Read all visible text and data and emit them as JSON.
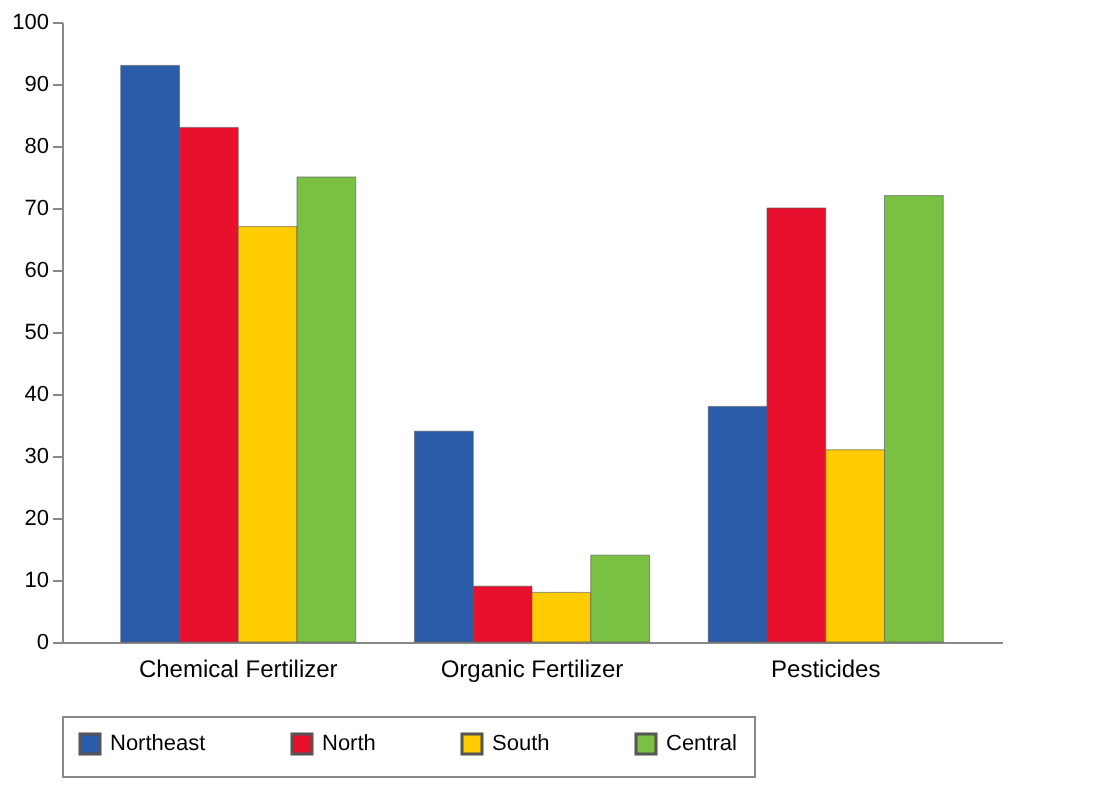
{
  "chart_data": {
    "type": "bar",
    "categories": [
      "Chemical Fertilizer",
      "Organic Fertilizer",
      "Pesticides"
    ],
    "series": [
      {
        "name": "Northeast",
        "color": "#2a5caa",
        "values": [
          93,
          34,
          38
        ]
      },
      {
        "name": "North",
        "color": "#e8112d",
        "values": [
          83,
          9,
          70
        ]
      },
      {
        "name": "South",
        "color": "#ffcc00",
        "values": [
          67,
          8,
          31
        ]
      },
      {
        "name": "Central",
        "color": "#7ac143",
        "values": [
          75,
          14,
          72
        ]
      }
    ],
    "ylim": [
      0,
      100
    ],
    "yticks": [
      0,
      10,
      20,
      30,
      40,
      50,
      60,
      70,
      80,
      90,
      100
    ],
    "grid": false,
    "legend": "bottom"
  }
}
